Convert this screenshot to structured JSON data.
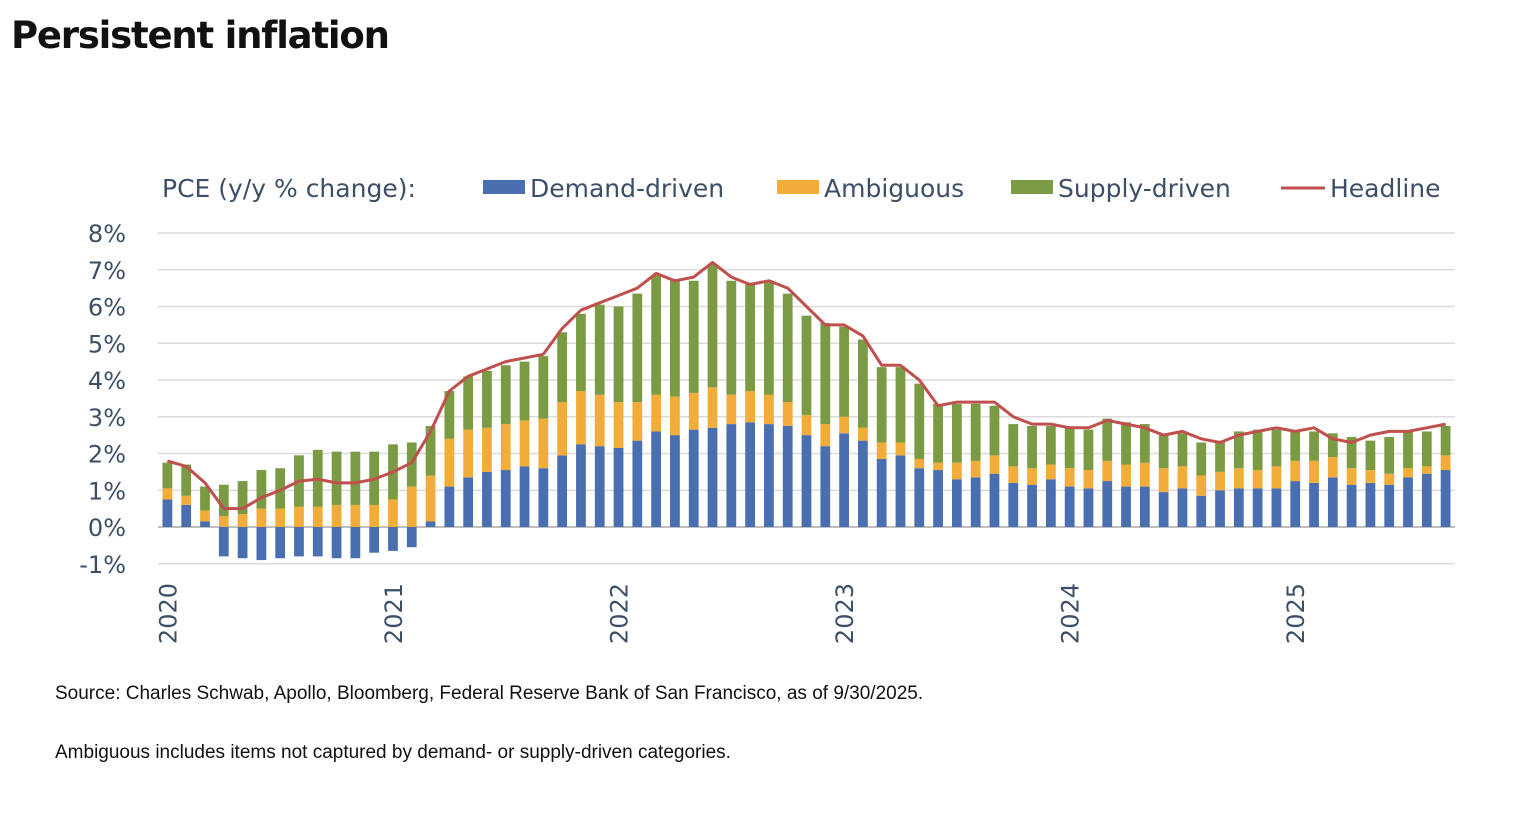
{
  "page_title": "Persistent inflation",
  "notes": {
    "source": "Source: Charles Schwab, Apollo, Bloomberg, Federal Reserve Bank of San Francisco, as of 9/30/2025.",
    "ambiguous": "Ambiguous includes items not captured by demand- or supply-driven categories."
  },
  "chart_data": {
    "type": "bar",
    "stacked": true,
    "title": "",
    "legend_label": "PCE (y/y % change):",
    "legend_position": "top",
    "ylim": [
      -1,
      8
    ],
    "yticks": [
      8,
      7,
      6,
      5,
      4,
      3,
      2,
      1,
      0,
      -1
    ],
    "ytick_labels": [
      "8%",
      "7%",
      "6%",
      "5%",
      "4%",
      "3%",
      "2%",
      "1%",
      "0%",
      "-1%"
    ],
    "grid": true,
    "x_start": "2020-01",
    "x_labels": [
      "2020",
      "2021",
      "2022",
      "2023",
      "2024",
      "2025"
    ],
    "x_label_months": [
      0,
      12,
      24,
      36,
      48,
      60
    ],
    "colors": {
      "demand": "#4a6fb1",
      "ambiguous": "#f2ac3a",
      "supply": "#7a9a44",
      "headline": "#c0504d",
      "grid": "#dcdcdc",
      "text": "#3c4f66"
    },
    "series": [
      {
        "name": "Demand-driven",
        "key": "demand",
        "values": [
          0.75,
          0.6,
          0.15,
          -0.8,
          -0.85,
          -0.9,
          -0.85,
          -0.8,
          -0.8,
          -0.85,
          -0.85,
          -0.7,
          -0.65,
          -0.55,
          0.15,
          1.1,
          1.35,
          1.5,
          1.55,
          1.65,
          1.6,
          1.95,
          2.25,
          2.2,
          2.15,
          2.35,
          2.6,
          2.5,
          2.65,
          2.7,
          2.8,
          2.85,
          2.8,
          2.75,
          2.5,
          2.2,
          2.55,
          2.35,
          1.85,
          1.95,
          1.6,
          1.55,
          1.3,
          1.35,
          1.45,
          1.2,
          1.15,
          1.3,
          1.1,
          1.05,
          1.25,
          1.1,
          1.1,
          0.95,
          1.05,
          0.85,
          1.0,
          1.05,
          1.05,
          1.05,
          1.25,
          1.2,
          1.35,
          1.15,
          1.2,
          1.15,
          1.35,
          1.45,
          1.55
        ]
      },
      {
        "name": "Ambiguous",
        "key": "ambiguous",
        "values": [
          0.3,
          0.25,
          0.3,
          0.3,
          0.35,
          0.5,
          0.5,
          0.55,
          0.55,
          0.6,
          0.6,
          0.6,
          0.75,
          1.1,
          1.25,
          1.3,
          1.3,
          1.2,
          1.25,
          1.25,
          1.35,
          1.45,
          1.45,
          1.4,
          1.25,
          1.05,
          1.0,
          1.05,
          1.0,
          1.1,
          0.8,
          0.85,
          0.8,
          0.65,
          0.55,
          0.6,
          0.45,
          0.35,
          0.45,
          0.35,
          0.25,
          0.2,
          0.45,
          0.45,
          0.5,
          0.45,
          0.45,
          0.4,
          0.5,
          0.5,
          0.55,
          0.6,
          0.65,
          0.65,
          0.6,
          0.55,
          0.5,
          0.55,
          0.5,
          0.6,
          0.55,
          0.6,
          0.55,
          0.45,
          0.35,
          0.3,
          0.25,
          0.2,
          0.4
        ]
      },
      {
        "name": "Supply-driven",
        "key": "supply",
        "values": [
          0.7,
          0.85,
          0.65,
          0.85,
          0.9,
          1.05,
          1.1,
          1.4,
          1.55,
          1.45,
          1.45,
          1.45,
          1.5,
          1.2,
          1.35,
          1.3,
          1.45,
          1.55,
          1.6,
          1.6,
          1.7,
          1.9,
          2.1,
          2.45,
          2.6,
          2.95,
          3.25,
          3.15,
          3.05,
          3.35,
          3.1,
          2.95,
          3.05,
          2.95,
          2.7,
          2.75,
          2.45,
          2.4,
          2.05,
          2.05,
          2.05,
          1.6,
          1.6,
          1.55,
          1.35,
          1.15,
          1.15,
          1.05,
          1.1,
          1.1,
          1.15,
          1.15,
          1.05,
          0.9,
          0.9,
          0.9,
          0.85,
          1.0,
          1.1,
          1.0,
          0.8,
          0.8,
          0.65,
          0.85,
          0.8,
          1.0,
          1.0,
          0.95,
          0.8
        ]
      },
      {
        "name": "Headline",
        "key": "headline",
        "type": "line",
        "values": [
          1.8,
          1.65,
          1.2,
          0.5,
          0.5,
          0.8,
          1.0,
          1.25,
          1.3,
          1.2,
          1.2,
          1.3,
          1.5,
          1.75,
          2.6,
          3.7,
          4.1,
          4.3,
          4.5,
          4.6,
          4.7,
          5.4,
          5.9,
          6.1,
          6.3,
          6.5,
          6.9,
          6.7,
          6.8,
          7.2,
          6.8,
          6.6,
          6.7,
          6.5,
          6.0,
          5.5,
          5.5,
          5.2,
          4.4,
          4.4,
          4.0,
          3.3,
          3.4,
          3.4,
          3.4,
          3.0,
          2.8,
          2.8,
          2.7,
          2.7,
          2.9,
          2.8,
          2.7,
          2.5,
          2.6,
          2.4,
          2.3,
          2.5,
          2.6,
          2.7,
          2.6,
          2.7,
          2.4,
          2.3,
          2.5,
          2.6,
          2.6,
          2.7,
          2.8
        ]
      }
    ]
  }
}
